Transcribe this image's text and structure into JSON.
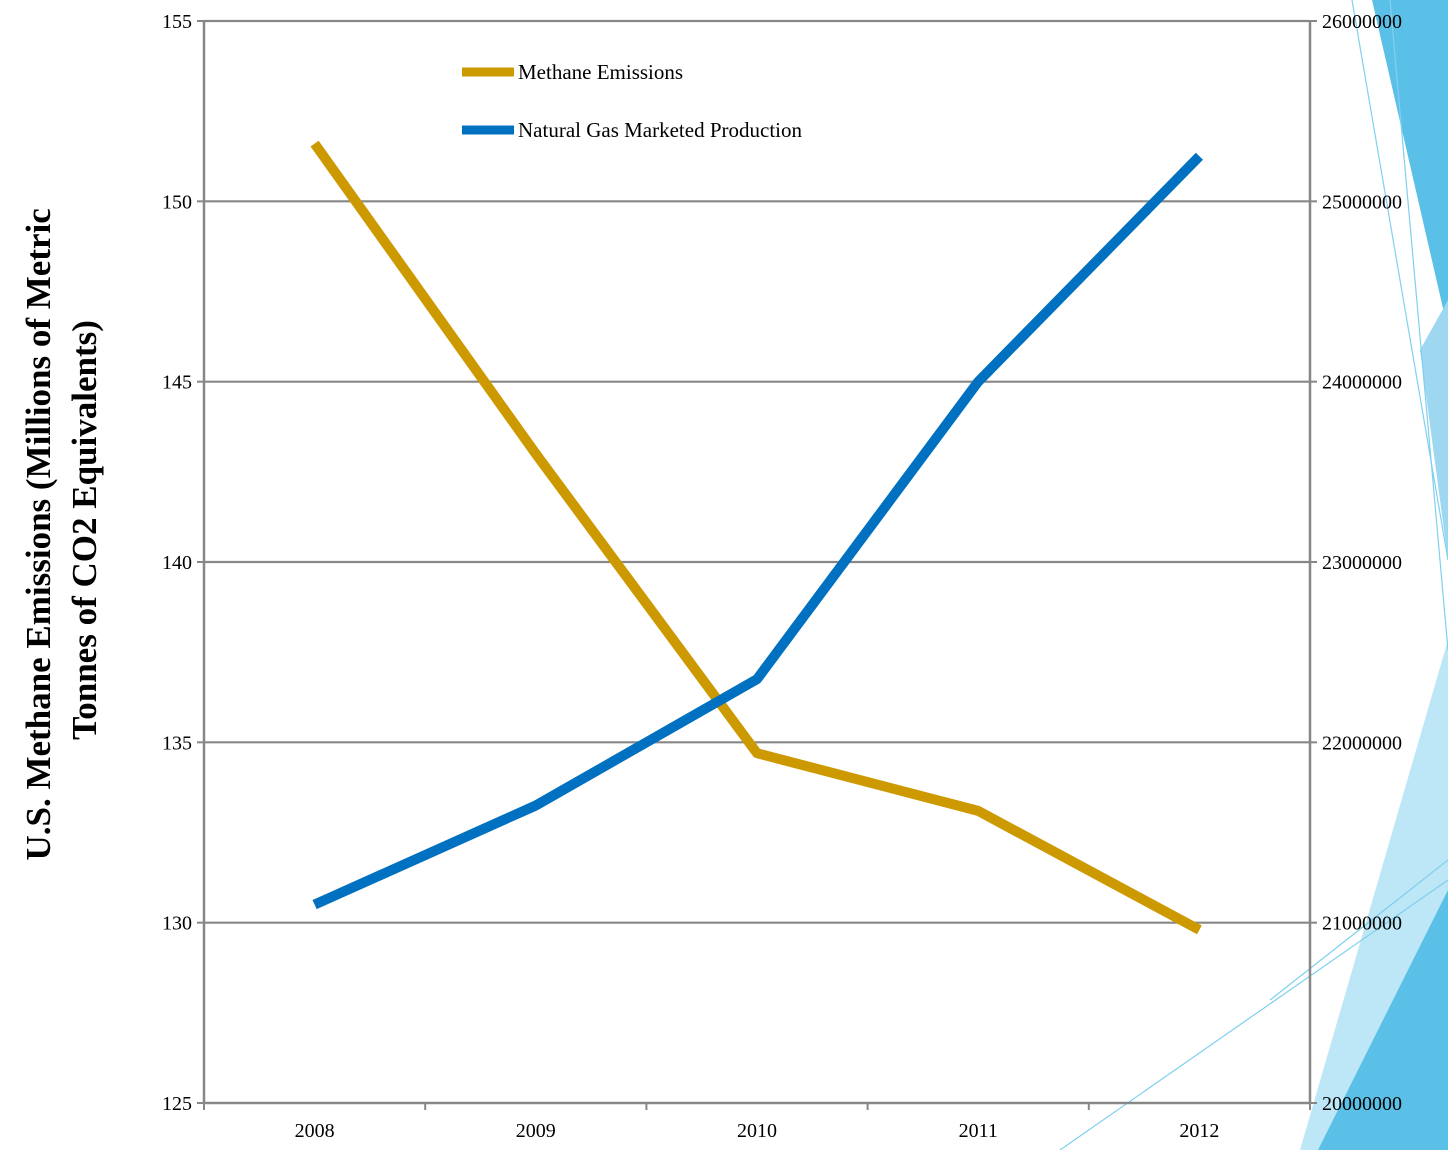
{
  "chart_data": {
    "type": "line",
    "categories": [
      "2008",
      "2009",
      "2010",
      "2011",
      "2012"
    ],
    "series": [
      {
        "name": "Methane Emissions",
        "axis": "left",
        "color": "#CC9900",
        "values": [
          151.6,
          143.0,
          134.7,
          133.1,
          129.8
        ]
      },
      {
        "name": "Natural Gas Marketed Production",
        "axis": "right",
        "color": "#0070C0",
        "values": [
          21100000,
          21650000,
          22350000,
          24000000,
          25250000
        ]
      }
    ],
    "ylabel_lines": [
      "U.S. Methane Emissions (Millions of Metric",
      "Tonnes of CO2 Equivalents)"
    ],
    "ylim": [
      125,
      155
    ],
    "yticks": [
      "125",
      "130",
      "135",
      "140",
      "145",
      "150",
      "155"
    ],
    "y2lim": [
      20000000,
      26000000
    ],
    "y2ticks": [
      "20000000",
      "21000000",
      "22000000",
      "23000000",
      "24000000",
      "25000000",
      "26000000"
    ],
    "grid": true,
    "legend_position": "top-left"
  }
}
